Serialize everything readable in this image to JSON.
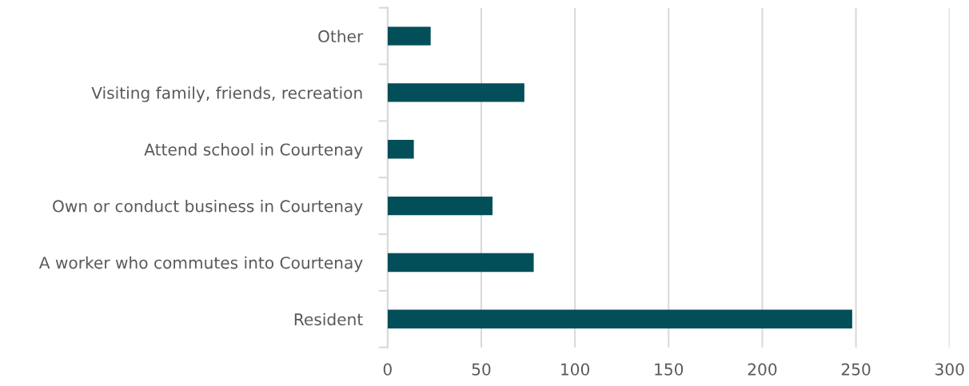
{
  "chart_data": {
    "type": "bar",
    "orientation": "horizontal",
    "categories": [
      "Other",
      "Visiting family, friends, recreation",
      "Attend school in Courtenay",
      "Own or conduct business in Courtenay",
      "A worker who commutes into Courtenay",
      "Resident"
    ],
    "values": [
      23,
      73,
      14,
      56,
      78,
      248
    ],
    "color": "#034f59",
    "xlim": [
      0,
      300
    ],
    "xticks": [
      0,
      50,
      100,
      150,
      200,
      250,
      300
    ],
    "grid": "x",
    "legend": false
  }
}
